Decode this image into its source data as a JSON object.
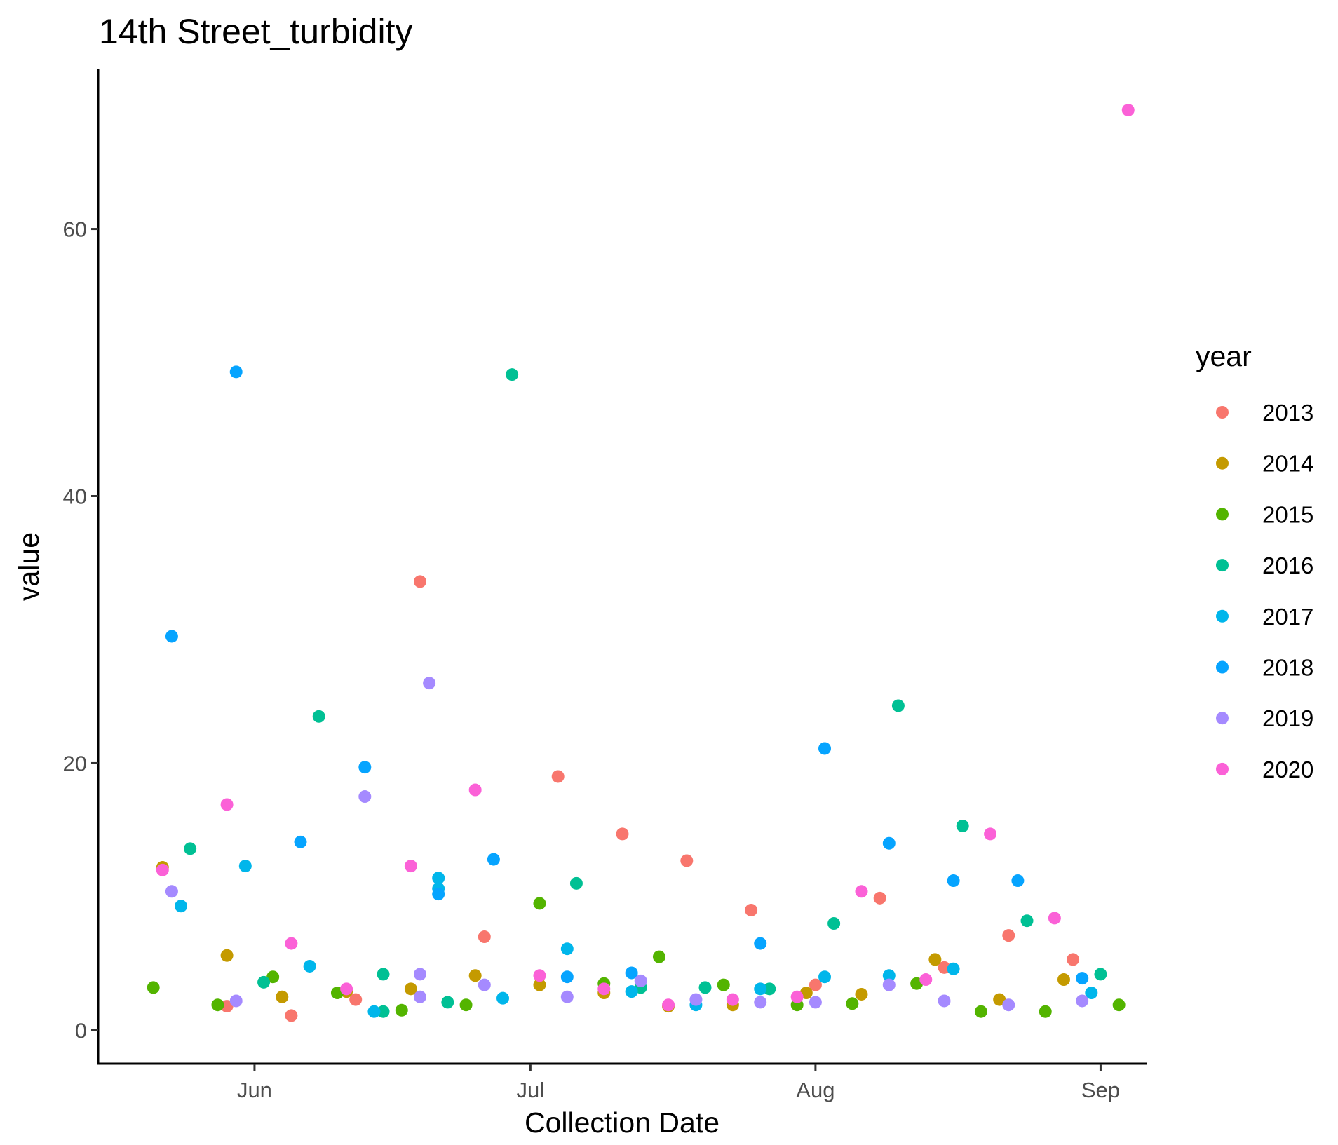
{
  "chart_data": {
    "type": "scatter",
    "title": "14th Street_turbidity",
    "xlabel": "Collection Date",
    "ylabel": "value",
    "x_axis_type": "date (day-of-year, month-day)",
    "xlim": [
      "05-15",
      "09-06"
    ],
    "ylim": [
      -2.5,
      72
    ],
    "x_ticks": [
      {
        "date": "06-01",
        "label": "Jun"
      },
      {
        "date": "07-01",
        "label": "Jul"
      },
      {
        "date": "08-01",
        "label": "Aug"
      },
      {
        "date": "09-01",
        "label": "Sep"
      }
    ],
    "y_ticks": [
      0,
      20,
      40,
      60
    ],
    "grid": false,
    "legend": {
      "title": "year",
      "position": "right"
    },
    "series": [
      {
        "name": "2013",
        "color": "#F8766D",
        "points": [
          {
            "x": "05-29",
            "y": 1.8
          },
          {
            "x": "06-05",
            "y": 1.1
          },
          {
            "x": "06-12",
            "y": 2.3
          },
          {
            "x": "06-19",
            "y": 33.6
          },
          {
            "x": "06-26",
            "y": 7.0
          },
          {
            "x": "07-04",
            "y": 19.0
          },
          {
            "x": "07-11",
            "y": 14.7
          },
          {
            "x": "07-18",
            "y": 12.7
          },
          {
            "x": "07-25",
            "y": 9.0
          },
          {
            "x": "08-01",
            "y": 3.4
          },
          {
            "x": "08-08",
            "y": 9.9
          },
          {
            "x": "08-15",
            "y": 4.7
          },
          {
            "x": "08-22",
            "y": 7.1
          },
          {
            "x": "08-29",
            "y": 5.3
          }
        ]
      },
      {
        "name": "2014",
        "color": "#C49A00",
        "points": [
          {
            "x": "05-22",
            "y": 12.2
          },
          {
            "x": "05-29",
            "y": 5.6
          },
          {
            "x": "06-04",
            "y": 2.5
          },
          {
            "x": "06-11",
            "y": 2.9
          },
          {
            "x": "06-18",
            "y": 3.1
          },
          {
            "x": "06-25",
            "y": 4.1
          },
          {
            "x": "07-02",
            "y": 3.4
          },
          {
            "x": "07-09",
            "y": 2.8
          },
          {
            "x": "07-16",
            "y": 1.8
          },
          {
            "x": "07-23",
            "y": 1.9
          },
          {
            "x": "07-31",
            "y": 2.8
          },
          {
            "x": "08-06",
            "y": 2.7
          },
          {
            "x": "08-14",
            "y": 5.3
          },
          {
            "x": "08-21",
            "y": 2.3
          },
          {
            "x": "08-28",
            "y": 3.8
          }
        ]
      },
      {
        "name": "2015",
        "color": "#53B400",
        "points": [
          {
            "x": "05-21",
            "y": 3.2
          },
          {
            "x": "05-28",
            "y": 1.9
          },
          {
            "x": "06-03",
            "y": 4.0
          },
          {
            "x": "06-10",
            "y": 2.8
          },
          {
            "x": "06-17",
            "y": 1.5
          },
          {
            "x": "06-24",
            "y": 1.9
          },
          {
            "x": "07-02",
            "y": 9.5
          },
          {
            "x": "07-09",
            "y": 3.5
          },
          {
            "x": "07-15",
            "y": 5.5
          },
          {
            "x": "07-22",
            "y": 3.4
          },
          {
            "x": "07-30",
            "y": 1.9
          },
          {
            "x": "08-05",
            "y": 2.0
          },
          {
            "x": "08-12",
            "y": 3.5
          },
          {
            "x": "08-19",
            "y": 1.4
          },
          {
            "x": "08-26",
            "y": 1.4
          },
          {
            "x": "09-03",
            "y": 1.9
          }
        ]
      },
      {
        "name": "2016",
        "color": "#00C094",
        "points": [
          {
            "x": "05-25",
            "y": 13.6
          },
          {
            "x": "06-02",
            "y": 3.6
          },
          {
            "x": "06-08",
            "y": 23.5
          },
          {
            "x": "06-15",
            "y": 1.4
          },
          {
            "x": "06-15",
            "y": 4.2
          },
          {
            "x": "06-22",
            "y": 2.1
          },
          {
            "x": "06-29",
            "y": 49.1
          },
          {
            "x": "07-06",
            "y": 11.0
          },
          {
            "x": "07-13",
            "y": 3.2
          },
          {
            "x": "07-20",
            "y": 3.2
          },
          {
            "x": "07-27",
            "y": 3.1
          },
          {
            "x": "08-03",
            "y": 8.0
          },
          {
            "x": "08-10",
            "y": 24.3
          },
          {
            "x": "08-17",
            "y": 15.3
          },
          {
            "x": "08-24",
            "y": 8.2
          },
          {
            "x": "09-01",
            "y": 4.2
          }
        ]
      },
      {
        "name": "2017",
        "color": "#00B6EB",
        "points": [
          {
            "x": "05-24",
            "y": 9.3
          },
          {
            "x": "05-31",
            "y": 12.3
          },
          {
            "x": "06-07",
            "y": 4.8
          },
          {
            "x": "06-14",
            "y": 1.4
          },
          {
            "x": "06-21",
            "y": 11.4
          },
          {
            "x": "06-21",
            "y": 10.6
          },
          {
            "x": "06-28",
            "y": 2.4
          },
          {
            "x": "07-05",
            "y": 6.1
          },
          {
            "x": "07-12",
            "y": 2.9
          },
          {
            "x": "07-19",
            "y": 1.9
          },
          {
            "x": "07-26",
            "y": 3.1
          },
          {
            "x": "08-02",
            "y": 4.0
          },
          {
            "x": "08-09",
            "y": 4.1
          },
          {
            "x": "08-16",
            "y": 4.6
          },
          {
            "x": "08-31",
            "y": 2.8
          }
        ]
      },
      {
        "name": "2018",
        "color": "#06A4FF",
        "points": [
          {
            "x": "05-23",
            "y": 29.5
          },
          {
            "x": "05-30",
            "y": 49.3
          },
          {
            "x": "06-06",
            "y": 14.1
          },
          {
            "x": "06-13",
            "y": 19.7
          },
          {
            "x": "06-21",
            "y": 10.2
          },
          {
            "x": "06-27",
            "y": 12.8
          },
          {
            "x": "07-05",
            "y": 4.0
          },
          {
            "x": "07-12",
            "y": 4.3
          },
          {
            "x": "07-26",
            "y": 6.5
          },
          {
            "x": "08-02",
            "y": 21.1
          },
          {
            "x": "08-09",
            "y": 14.0
          },
          {
            "x": "08-16",
            "y": 11.2
          },
          {
            "x": "08-23",
            "y": 11.2
          },
          {
            "x": "08-30",
            "y": 3.9
          }
        ]
      },
      {
        "name": "2019",
        "color": "#A58AFF",
        "points": [
          {
            "x": "05-23",
            "y": 10.4
          },
          {
            "x": "05-30",
            "y": 2.2
          },
          {
            "x": "06-13",
            "y": 17.5
          },
          {
            "x": "06-19",
            "y": 4.2
          },
          {
            "x": "06-19",
            "y": 2.5
          },
          {
            "x": "06-20",
            "y": 26.0
          },
          {
            "x": "06-26",
            "y": 3.4
          },
          {
            "x": "07-05",
            "y": 2.5
          },
          {
            "x": "07-13",
            "y": 3.7
          },
          {
            "x": "07-19",
            "y": 2.3
          },
          {
            "x": "07-26",
            "y": 2.1
          },
          {
            "x": "08-01",
            "y": 2.1
          },
          {
            "x": "08-09",
            "y": 3.4
          },
          {
            "x": "08-15",
            "y": 2.2
          },
          {
            "x": "08-22",
            "y": 1.9
          },
          {
            "x": "08-30",
            "y": 2.2
          }
        ]
      },
      {
        "name": "2020",
        "color": "#FB61D7",
        "points": [
          {
            "x": "05-22",
            "y": 12.0
          },
          {
            "x": "05-29",
            "y": 16.9
          },
          {
            "x": "06-05",
            "y": 6.5
          },
          {
            "x": "06-11",
            "y": 3.1
          },
          {
            "x": "06-18",
            "y": 12.3
          },
          {
            "x": "06-25",
            "y": 18.0
          },
          {
            "x": "07-02",
            "y": 4.1
          },
          {
            "x": "07-09",
            "y": 3.1
          },
          {
            "x": "07-16",
            "y": 1.9
          },
          {
            "x": "07-23",
            "y": 2.3
          },
          {
            "x": "07-30",
            "y": 2.5
          },
          {
            "x": "08-06",
            "y": 10.4
          },
          {
            "x": "08-13",
            "y": 3.8
          },
          {
            "x": "08-20",
            "y": 14.7
          },
          {
            "x": "08-27",
            "y": 8.4
          },
          {
            "x": "09-04",
            "y": 68.9
          }
        ]
      }
    ]
  }
}
